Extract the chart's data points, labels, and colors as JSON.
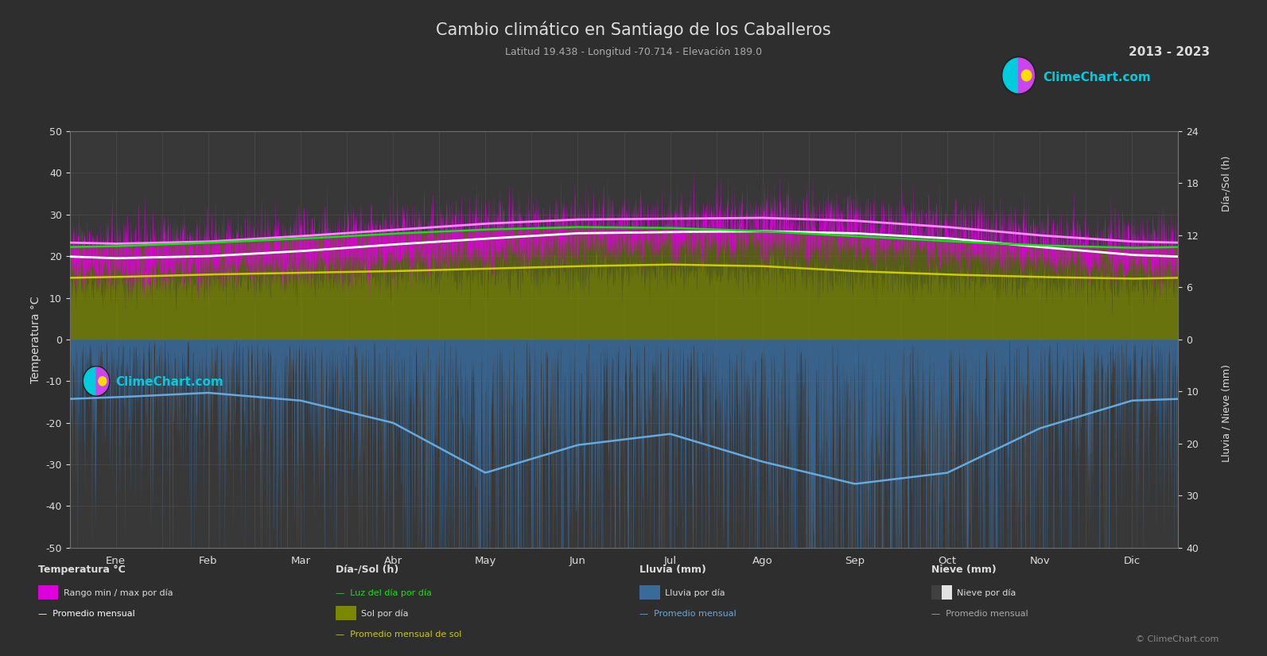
{
  "title": "Cambio climático en Santiago de los Caballeros",
  "subtitle": "Latitud 19.438 - Longitud -70.714 - Elevación 189.0",
  "year_range": "2013 - 2023",
  "background_color": "#2e2e2e",
  "plot_bg_color": "#383838",
  "text_color": "#dddddd",
  "grid_color": "#505050",
  "months": [
    "Ene",
    "Feb",
    "Mar",
    "Abr",
    "May",
    "Jun",
    "Jul",
    "Ago",
    "Sep",
    "Oct",
    "Nov",
    "Dic"
  ],
  "ylim_left": [
    -50,
    50
  ],
  "temp_avg_monthly": [
    19.5,
    20.0,
    21.2,
    22.8,
    24.2,
    25.5,
    25.8,
    26.0,
    25.5,
    24.3,
    22.2,
    20.3
  ],
  "temp_max_monthly": [
    23.0,
    23.5,
    24.8,
    26.3,
    27.8,
    28.8,
    29.0,
    29.2,
    28.5,
    27.0,
    25.0,
    23.5
  ],
  "temp_min_monthly": [
    16.5,
    17.0,
    18.0,
    19.5,
    21.0,
    22.5,
    23.0,
    23.0,
    22.5,
    21.5,
    19.5,
    17.5
  ],
  "sun_hours_monthly": [
    7.5,
    7.8,
    8.0,
    8.2,
    8.5,
    8.8,
    9.0,
    8.8,
    8.2,
    7.8,
    7.5,
    7.3
  ],
  "daylight_monthly": [
    11.2,
    11.6,
    12.1,
    12.7,
    13.2,
    13.5,
    13.4,
    13.0,
    12.4,
    11.8,
    11.3,
    11.0
  ],
  "rain_monthly_avg_mm": [
    52,
    48,
    55,
    75,
    120,
    95,
    85,
    110,
    130,
    120,
    80,
    55
  ],
  "rain_scale": 4.0,
  "sun_scale": 2.0,
  "color_temp_fill": "#dd00dd",
  "color_sun_fill": "#7a8800",
  "color_daylight_fill": "#5a6800",
  "color_rain_fill": "#3a6a9a",
  "color_temp_avg": "#ffffff",
  "color_temp_max_avg": "#ff88ff",
  "color_daylight_line": "#00ee00",
  "color_sun_avg": "#cccc00",
  "color_rain_avg": "#66aadd",
  "right_ticks_top": [
    0,
    6,
    12,
    18,
    24
  ],
  "right_ticks_bot": [
    0,
    10,
    20,
    30,
    40
  ],
  "logo_cyan": "#00ccdd",
  "logo_magenta": "#cc44ee",
  "logo_yellow": "#ffdd00"
}
